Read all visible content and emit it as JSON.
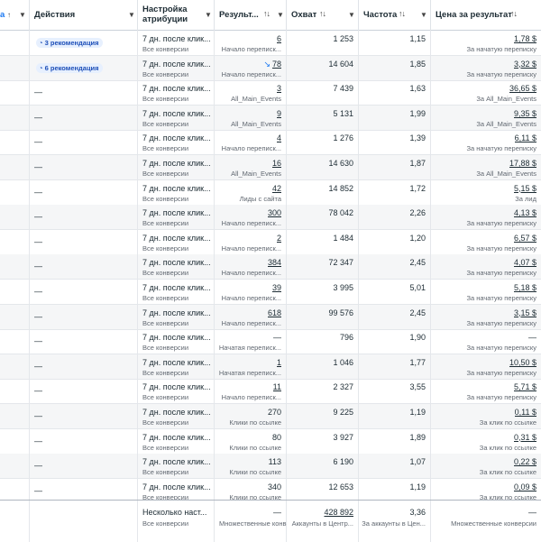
{
  "header": {
    "col0_label": "а",
    "actions_label": "Действия",
    "attribution_label": "Настройка атрибуции",
    "results_label": "Результ...",
    "reach_label": "Охват",
    "frequency_label": "Частота",
    "cpr_label": "Цена за результат",
    "sort_glyph": "↑↓",
    "asc_glyph": "↑",
    "dropdown_glyph": "▼"
  },
  "rows": [
    {
      "rec": "3 рекомендация",
      "attr": "7 дн. после клик...",
      "attr_sub": "Все конверсии",
      "result": "6",
      "result_sub": "Начало переписк...",
      "reach": "1 253",
      "freq": "1,15",
      "cpr": "1,78 $",
      "cpr_sub": "За начатую переписку",
      "trend": ""
    },
    {
      "rec": "6 рекомендация",
      "attr": "7 дн. после клик...",
      "attr_sub": "Все конверсии",
      "result": "78",
      "result_sub": "Начало переписк...",
      "reach": "14 604",
      "freq": "1,85",
      "cpr": "3,32 $",
      "cpr_sub": "За начатую переписку",
      "trend": "↘"
    },
    {
      "rec": "—",
      "attr": "7 дн. после клик...",
      "attr_sub": "Все конверсии",
      "result": "3",
      "result_sub": "All_Main_Events",
      "reach": "7 439",
      "freq": "1,63",
      "cpr": "36,65 $",
      "cpr_sub": "За All_Main_Events",
      "trend": ""
    },
    {
      "rec": "—",
      "attr": "7 дн. после клик...",
      "attr_sub": "Все конверсии",
      "result": "9",
      "result_sub": "All_Main_Events",
      "reach": "5 131",
      "freq": "1,99",
      "cpr": "9,35 $",
      "cpr_sub": "За All_Main_Events",
      "trend": ""
    },
    {
      "rec": "—",
      "attr": "7 дн. после клик...",
      "attr_sub": "Все конверсии",
      "result": "4",
      "result_sub": "Начало переписк...",
      "reach": "1 276",
      "freq": "1,39",
      "cpr": "6,11 $",
      "cpr_sub": "За начатую переписку",
      "trend": ""
    },
    {
      "rec": "—",
      "attr": "7 дн. после клик...",
      "attr_sub": "Все конверсии",
      "result": "16",
      "result_sub": "All_Main_Events",
      "reach": "14 630",
      "freq": "1,87",
      "cpr": "17,88 $",
      "cpr_sub": "За All_Main_Events",
      "trend": ""
    },
    {
      "rec": "—",
      "attr": "7 дн. после клик...",
      "attr_sub": "Все конверсии",
      "result": "42",
      "result_sub": "Лиды с сайта",
      "reach": "14 852",
      "freq": "1,72",
      "cpr": "5,15 $",
      "cpr_sub": "За лид",
      "trend": ""
    },
    {
      "rec": "—",
      "attr": "7 дн. после клик...",
      "attr_sub": "Все конверсии",
      "result": "300",
      "result_sub": "Начало переписк...",
      "reach": "78 042",
      "freq": "2,26",
      "cpr": "4,13 $",
      "cpr_sub": "За начатую переписку",
      "trend": ""
    },
    {
      "rec": "—",
      "attr": "7 дн. после клик...",
      "attr_sub": "Все конверсии",
      "result": "2",
      "result_sub": "Начало переписк...",
      "reach": "1 484",
      "freq": "1,20",
      "cpr": "6,57 $",
      "cpr_sub": "За начатую переписку",
      "trend": ""
    },
    {
      "rec": "—",
      "attr": "7 дн. после клик...",
      "attr_sub": "Все конверсии",
      "result": "384",
      "result_sub": "Начало переписк...",
      "reach": "72 347",
      "freq": "2,45",
      "cpr": "4,07 $",
      "cpr_sub": "За начатую переписку",
      "trend": ""
    },
    {
      "rec": "—",
      "attr": "7 дн. после клик...",
      "attr_sub": "Все конверсии",
      "result": "39",
      "result_sub": "Начало переписк...",
      "reach": "3 995",
      "freq": "5,01",
      "cpr": "5,18 $",
      "cpr_sub": "За начатую переписку",
      "trend": ""
    },
    {
      "rec": "—",
      "attr": "7 дн. после клик...",
      "attr_sub": "Все конверсии",
      "result": "618",
      "result_sub": "Начало переписк...",
      "reach": "99 576",
      "freq": "2,45",
      "cpr": "3,15 $",
      "cpr_sub": "За начатую переписку",
      "trend": ""
    },
    {
      "rec": "—",
      "attr": "7 дн. после клик...",
      "attr_sub": "Все конверсии",
      "result": "—",
      "result_sub": "Начатая переписк...",
      "reach": "796",
      "freq": "1,90",
      "cpr": "—",
      "cpr_sub": "За начатую переписку",
      "trend": ""
    },
    {
      "rec": "—",
      "attr": "7 дн. после клик...",
      "attr_sub": "Все конверсии",
      "result": "1",
      "result_sub": "Начатая переписк...",
      "reach": "1 046",
      "freq": "1,77",
      "cpr": "10,50 $",
      "cpr_sub": "За начатую переписку",
      "trend": ""
    },
    {
      "rec": "—",
      "attr": "7 дн. после клик...",
      "attr_sub": "Все конверсии",
      "result": "11",
      "result_sub": "Начало переписк...",
      "reach": "2 327",
      "freq": "3,55",
      "cpr": "5,71 $",
      "cpr_sub": "За начатую переписку",
      "trend": ""
    },
    {
      "rec": "—",
      "attr": "7 дн. после клик...",
      "attr_sub": "Все конверсии",
      "result": "270",
      "result_sub": "Клики по ссылке",
      "reach": "9 225",
      "freq": "1,19",
      "cpr": "0,11 $",
      "cpr_sub": "За клик по ссылке",
      "trend": ""
    },
    {
      "rec": "—",
      "attr": "7 дн. после клик...",
      "attr_sub": "Все конверсии",
      "result": "80",
      "result_sub": "Клики по ссылке",
      "reach": "3 927",
      "freq": "1,89",
      "cpr": "0,31 $",
      "cpr_sub": "За клик по ссылке",
      "trend": ""
    },
    {
      "rec": "—",
      "attr": "7 дн. после клик...",
      "attr_sub": "Все конверсии",
      "result": "113",
      "result_sub": "Клики по ссылке",
      "reach": "6 190",
      "freq": "1,07",
      "cpr": "0,22 $",
      "cpr_sub": "За клик по ссылке",
      "trend": ""
    },
    {
      "rec": "—",
      "attr": "7 дн. после клик...",
      "attr_sub": "Все конверсии",
      "result": "340",
      "result_sub": "Клики по ссылке",
      "reach": "12 653",
      "freq": "1,19",
      "cpr": "0,09 $",
      "cpr_sub": "За клик по ссылке",
      "trend": ""
    }
  ],
  "footer": {
    "attr": "Несколько наст...",
    "attr_sub": "Все конверсии",
    "result": "—",
    "result_sub": "Множественные конв...",
    "reach": "428 892",
    "reach_sub": "Аккаунты в Центр...",
    "freq": "3,36",
    "freq_sub": "За аккаунты в Цен...",
    "cpr": "—",
    "cpr_sub": "Множественные конверсии"
  }
}
